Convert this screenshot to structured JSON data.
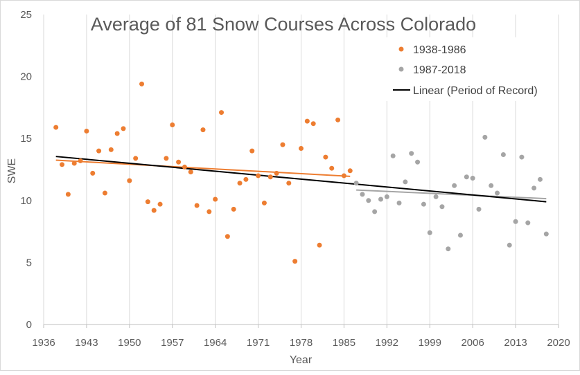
{
  "chart_data": {
    "type": "scatter",
    "title": "Average of 81 Snow Courses Across Colorado",
    "xlabel": "Year",
    "ylabel": "SWE",
    "xlim": [
      1936,
      2020
    ],
    "ylim": [
      0,
      25
    ],
    "x_ticks": [
      1936,
      1943,
      1950,
      1957,
      1964,
      1971,
      1978,
      1985,
      1992,
      1999,
      2006,
      2013,
      2020
    ],
    "y_ticks": [
      0,
      5,
      10,
      15,
      20,
      25
    ],
    "grid": "vertical",
    "legend_position": "top-right",
    "series": [
      {
        "name": "1938-1986",
        "color": "#ED7D31",
        "marker": "circle",
        "points": [
          [
            1938,
            15.9
          ],
          [
            1939,
            12.9
          ],
          [
            1940,
            10.5
          ],
          [
            1941,
            13.0
          ],
          [
            1942,
            13.2
          ],
          [
            1943,
            15.6
          ],
          [
            1944,
            12.2
          ],
          [
            1945,
            14.0
          ],
          [
            1946,
            10.6
          ],
          [
            1947,
            14.1
          ],
          [
            1948,
            15.4
          ],
          [
            1949,
            15.8
          ],
          [
            1950,
            11.6
          ],
          [
            1951,
            13.4
          ],
          [
            1952,
            19.4
          ],
          [
            1953,
            9.9
          ],
          [
            1954,
            9.2
          ],
          [
            1955,
            9.7
          ],
          [
            1956,
            13.4
          ],
          [
            1957,
            16.1
          ],
          [
            1958,
            13.1
          ],
          [
            1959,
            12.7
          ],
          [
            1960,
            12.3
          ],
          [
            1961,
            9.6
          ],
          [
            1962,
            15.7
          ],
          [
            1963,
            9.1
          ],
          [
            1964,
            10.1
          ],
          [
            1965,
            17.1
          ],
          [
            1966,
            7.1
          ],
          [
            1967,
            9.3
          ],
          [
            1968,
            11.4
          ],
          [
            1969,
            11.7
          ],
          [
            1970,
            14.0
          ],
          [
            1971,
            12.0
          ],
          [
            1972,
            9.8
          ],
          [
            1973,
            11.9
          ],
          [
            1974,
            12.2
          ],
          [
            1975,
            14.5
          ],
          [
            1976,
            11.4
          ],
          [
            1977,
            5.1
          ],
          [
            1978,
            14.2
          ],
          [
            1979,
            16.4
          ],
          [
            1980,
            16.2
          ],
          [
            1981,
            6.4
          ],
          [
            1982,
            13.5
          ],
          [
            1983,
            12.6
          ],
          [
            1984,
            16.5
          ],
          [
            1985,
            12.0
          ],
          [
            1986,
            12.4
          ]
        ],
        "trend": [
          [
            1938,
            13.25
          ],
          [
            1986,
            11.95
          ]
        ]
      },
      {
        "name": "1987-2018",
        "color": "#A5A5A5",
        "marker": "circle",
        "points": [
          [
            1987,
            11.4
          ],
          [
            1988,
            10.5
          ],
          [
            1989,
            10.0
          ],
          [
            1990,
            9.1
          ],
          [
            1991,
            10.1
          ],
          [
            1992,
            10.3
          ],
          [
            1993,
            13.6
          ],
          [
            1994,
            9.8
          ],
          [
            1995,
            11.5
          ],
          [
            1996,
            13.8
          ],
          [
            1997,
            13.1
          ],
          [
            1998,
            9.7
          ],
          [
            1999,
            7.4
          ],
          [
            2000,
            10.3
          ],
          [
            2001,
            9.5
          ],
          [
            2002,
            6.1
          ],
          [
            2003,
            11.2
          ],
          [
            2004,
            7.2
          ],
          [
            2005,
            11.9
          ],
          [
            2006,
            11.8
          ],
          [
            2007,
            9.3
          ],
          [
            2008,
            15.1
          ],
          [
            2009,
            11.2
          ],
          [
            2010,
            10.6
          ],
          [
            2011,
            13.7
          ],
          [
            2012,
            6.4
          ],
          [
            2013,
            8.3
          ],
          [
            2014,
            13.5
          ],
          [
            2015,
            8.2
          ],
          [
            2016,
            11.0
          ],
          [
            2017,
            11.7
          ],
          [
            2018,
            7.3
          ]
        ],
        "trend": [
          [
            1987,
            10.85
          ],
          [
            2018,
            10.15
          ]
        ]
      }
    ],
    "overall_trend": {
      "name": "Linear (Period of Record)",
      "color": "#000000",
      "line": [
        [
          1938,
          13.55
        ],
        [
          2018,
          9.9
        ]
      ]
    }
  }
}
